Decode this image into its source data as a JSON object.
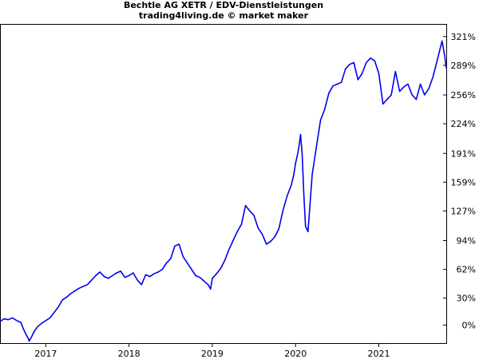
{
  "header": {
    "title": "Bechtle AG XETR / EDV-Dienstleistungen",
    "subtitle": "trading4living.de © market maker"
  },
  "chart_data": {
    "type": "line",
    "title": "Bechtle AG XETR / EDV-Dienstleistungen",
    "subtitle": "trading4living.de © market maker",
    "xlabel": "",
    "ylabel": "",
    "x_tick_labels": [
      "2017",
      "2018",
      "2019",
      "2020",
      "2021"
    ],
    "x_tick_values": [
      2017.0,
      2018.0,
      2019.0,
      2020.0,
      2021.0
    ],
    "y_tick_labels": [
      "0%",
      "30%",
      "62%",
      "94%",
      "127%",
      "159%",
      "191%",
      "224%",
      "256%",
      "289%",
      "321%"
    ],
    "y_tick_values": [
      0,
      30,
      62,
      94,
      127,
      159,
      191,
      224,
      256,
      289,
      321
    ],
    "ylim": [
      -20,
      335
    ],
    "xlim": [
      2016.45,
      2021.82
    ],
    "y_axis_side": "right",
    "grid": false,
    "line_color": "#0000ee",
    "series": [
      {
        "x": [
          2016.45,
          2016.5,
          2016.55,
          2016.6,
          2016.65,
          2016.7,
          2016.73,
          2016.76,
          2016.79,
          2016.8,
          2016.83,
          2016.86,
          2016.9,
          2016.95,
          2017.0,
          2017.05,
          2017.1,
          2017.15,
          2017.2,
          2017.25,
          2017.3,
          2017.35,
          2017.4,
          2017.45,
          2017.5,
          2017.55,
          2017.6,
          2017.65,
          2017.7,
          2017.75,
          2017.8,
          2017.85,
          2017.9,
          2017.95,
          2018.0,
          2018.05,
          2018.1,
          2018.15,
          2018.2,
          2018.25,
          2018.3,
          2018.35,
          2018.4,
          2018.45,
          2018.5,
          2018.55,
          2018.6,
          2018.65,
          2018.7,
          2018.75,
          2018.8,
          2018.85,
          2018.9,
          2018.95,
          2018.98,
          2019.0,
          2019.05,
          2019.1,
          2019.15,
          2019.2,
          2019.25,
          2019.3,
          2019.35,
          2019.4,
          2019.45,
          2019.5,
          2019.55,
          2019.6,
          2019.65,
          2019.7,
          2019.75,
          2019.8,
          2019.85,
          2019.9,
          2019.95,
          2019.98,
          2020.0,
          2020.02,
          2020.04,
          2020.06,
          2020.08,
          2020.1,
          2020.12,
          2020.15,
          2020.2,
          2020.25,
          2020.3,
          2020.35,
          2020.4,
          2020.45,
          2020.5,
          2020.55,
          2020.6,
          2020.65,
          2020.7,
          2020.75,
          2020.8,
          2020.85,
          2020.9,
          2020.95,
          2021.0,
          2021.05,
          2021.1,
          2021.15,
          2021.2,
          2021.25,
          2021.3,
          2021.35,
          2021.4,
          2021.45,
          2021.5,
          2021.55,
          2021.6,
          2021.65,
          2021.7,
          2021.73,
          2021.76,
          2021.79,
          2021.81
        ],
        "values": [
          4,
          7,
          6,
          8,
          5,
          3,
          -4,
          -10,
          -15,
          -18,
          -13,
          -7,
          -2,
          2,
          5,
          8,
          14,
          20,
          28,
          31,
          35,
          38,
          41,
          43,
          45,
          50,
          55,
          59,
          54,
          52,
          55,
          58,
          60,
          53,
          55,
          58,
          50,
          45,
          56,
          54,
          57,
          59,
          62,
          69,
          74,
          88,
          90,
          76,
          69,
          62,
          55,
          53,
          49,
          45,
          40,
          52,
          57,
          63,
          72,
          84,
          94,
          104,
          112,
          133,
          127,
          122,
          108,
          101,
          90,
          93,
          98,
          107,
          128,
          144,
          156,
          168,
          180,
          188,
          198,
          212,
          190,
          145,
          110,
          104,
          168,
          198,
          228,
          240,
          258,
          266,
          268,
          270,
          285,
          290,
          292,
          273,
          280,
          292,
          297,
          294,
          280,
          246,
          251,
          256,
          282,
          260,
          265,
          268,
          256,
          251,
          268,
          256,
          263,
          276,
          294,
          305,
          316,
          300,
          286
        ]
      }
    ]
  }
}
